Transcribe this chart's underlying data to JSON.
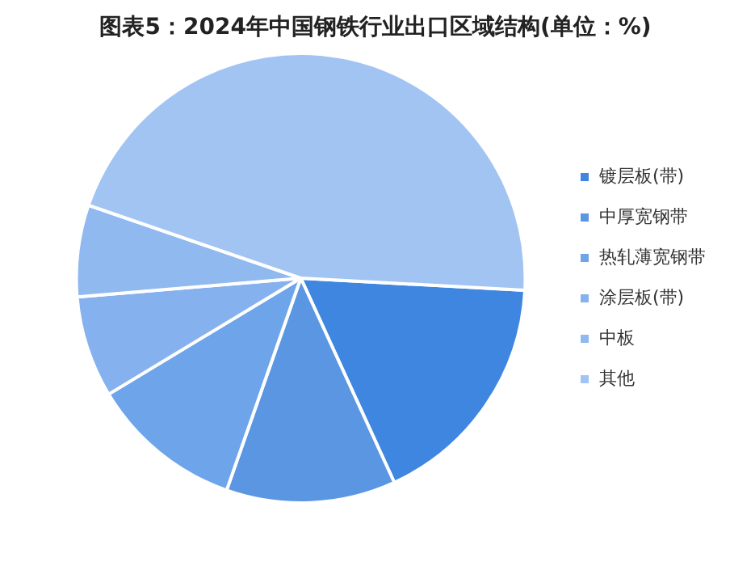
{
  "chart_data": {
    "type": "pie",
    "title": "图表5：2024年中国钢铁行业出口区域结构(单位：%)",
    "categories": [
      "镀层板(带)",
      "中厚宽钢带",
      "热轧薄宽钢带",
      "涂层板(带)",
      "中板",
      "其他"
    ],
    "values": [
      17.3,
      12.2,
      11.0,
      7.3,
      6.6,
      45.6
    ],
    "colors": [
      "#3f86e0",
      "#5b96e3",
      "#6ea4ea",
      "#85b2ee",
      "#8fb9ef",
      "#a2c4f3"
    ],
    "legend": "right"
  }
}
